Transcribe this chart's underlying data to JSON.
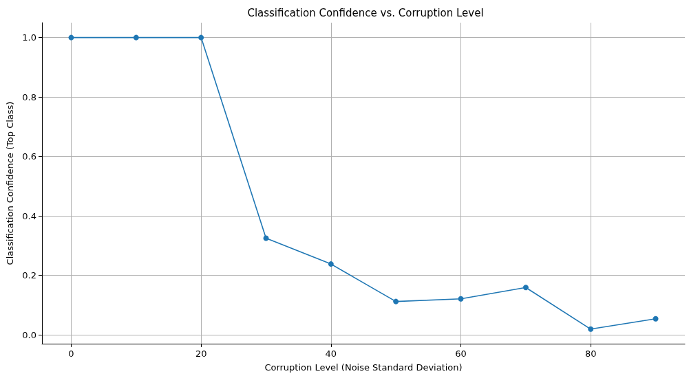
{
  "chart_data": {
    "type": "line",
    "title": "Classification Confidence vs. Corruption Level",
    "xlabel": "Corruption Level (Noise Standard Deviation)",
    "ylabel": "Classification Confidence (Top Class)",
    "x": [
      0,
      10,
      20,
      30,
      40,
      50,
      60,
      70,
      80,
      90
    ],
    "series": [
      {
        "color": "#1f77b4",
        "values": [
          1.0,
          1.0,
          1.0,
          0.325,
          0.238,
          0.112,
          0.121,
          0.159,
          0.019,
          0.054
        ]
      }
    ],
    "xlim": [
      -4.5,
      94.5
    ],
    "ylim": [
      -0.03,
      1.05
    ],
    "xticks": [
      0,
      20,
      40,
      60,
      80
    ],
    "yticks": [
      {
        "value": 0,
        "label": "0.0"
      },
      {
        "value": 0.2,
        "label": "0.2"
      },
      {
        "value": 0.4,
        "label": "0.4"
      },
      {
        "value": 0.6,
        "label": "0.6"
      },
      {
        "value": 0.8,
        "label": "0.8"
      },
      {
        "value": 1,
        "label": "1.0"
      }
    ],
    "grid": true,
    "marker": "circle",
    "line_style": "solid"
  }
}
